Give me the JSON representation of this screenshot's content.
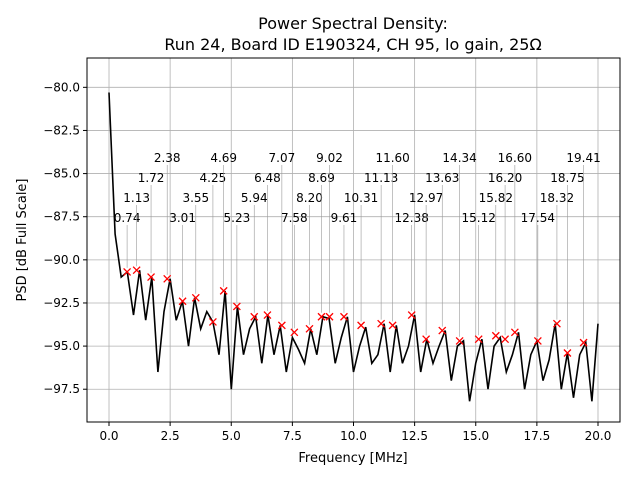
{
  "chart_data": {
    "type": "line",
    "title": "Power Spectral Density:",
    "subtitle": "Run 24, Board ID E190324, CH 95, lo gain, 25Ω",
    "xlabel": "Frequency [MHz]",
    "ylabel": "PSD [dB Full Scale]",
    "xlim": [
      -0.9,
      20.9
    ],
    "ylim": [
      -99.4,
      -78.3
    ],
    "grid": true,
    "xticks": [
      0,
      2.5,
      5,
      7.5,
      10,
      12.5,
      15,
      17.5,
      20
    ],
    "xtick_labels": [
      "0.0",
      "2.5",
      "5.0",
      "7.5",
      "10.0",
      "12.5",
      "15.0",
      "17.5",
      "20.0"
    ],
    "yticks": [
      -80,
      -82.5,
      -85,
      -87.5,
      -90,
      -92.5,
      -95,
      -97.5
    ],
    "ytick_labels": [
      "−80.0",
      "−82.5",
      "−85.0",
      "−87.5",
      "−90.0",
      "−92.5",
      "−95.0",
      "−97.5"
    ],
    "series": [
      {
        "name": "PSD",
        "color": "#000000",
        "x": [
          0,
          0.25,
          0.5,
          0.75,
          1,
          1.25,
          1.5,
          1.75,
          2,
          2.25,
          2.5,
          2.75,
          3,
          3.25,
          3.5,
          3.75,
          4,
          4.25,
          4.5,
          4.75,
          5,
          5.25,
          5.5,
          5.75,
          6,
          6.25,
          6.5,
          6.75,
          7,
          7.25,
          7.5,
          7.75,
          8,
          8.25,
          8.5,
          8.75,
          9,
          9.25,
          9.5,
          9.75,
          10,
          10.25,
          10.5,
          10.75,
          11,
          11.25,
          11.5,
          11.75,
          12,
          12.25,
          12.5,
          12.75,
          13,
          13.25,
          13.5,
          13.75,
          14,
          14.25,
          14.5,
          14.75,
          15,
          15.25,
          15.5,
          15.75,
          16,
          16.25,
          16.5,
          16.75,
          17,
          17.25,
          17.5,
          17.75,
          18,
          18.25,
          18.5,
          18.75,
          19,
          19.25,
          19.5,
          19.75,
          20
        ],
        "y": [
          -80.3,
          -88.5,
          -91.0,
          -90.7,
          -93.2,
          -90.6,
          -93.5,
          -91.0,
          -96.5,
          -93.0,
          -91.1,
          -93.5,
          -92.4,
          -95.0,
          -92.2,
          -94.0,
          -93.0,
          -93.6,
          -95.5,
          -91.8,
          -97.5,
          -92.7,
          -95.5,
          -94.0,
          -93.3,
          -96.0,
          -93.2,
          -95.5,
          -93.8,
          -96.5,
          -94.5,
          -95.2,
          -96.0,
          -94.0,
          -95.5,
          -93.3,
          -93.4,
          -96.0,
          -94.5,
          -93.3,
          -96.5,
          -95.0,
          -93.9,
          -96.0,
          -95.5,
          -93.7,
          -96.5,
          -93.8,
          -96.0,
          -95.0,
          -93.2,
          -96.5,
          -94.6,
          -96.0,
          -95.0,
          -94.1,
          -97.0,
          -95.0,
          -94.7,
          -98.2,
          -96.0,
          -94.6,
          -97.5,
          -95.0,
          -94.5,
          -96.5,
          -95.5,
          -94.2,
          -97.5,
          -95.5,
          -94.7,
          -97.0,
          -95.8,
          -93.7,
          -97.5,
          -95.4,
          -98.0,
          -95.5,
          -94.8,
          -98.2,
          -93.7
        ]
      }
    ],
    "peaks": {
      "marker_color": "#ff0000",
      "labels": [
        "0.74",
        "1.13",
        "1.72",
        "2.38",
        "3.01",
        "3.55",
        "4.25",
        "4.69",
        "5.23",
        "5.94",
        "6.48",
        "7.07",
        "7.58",
        "8.20",
        "8.69",
        "9.02",
        "9.61",
        "10.31",
        "11.13",
        "11.60",
        "12.38",
        "12.97",
        "13.63",
        "14.34",
        "15.12",
        "15.82",
        "16.20",
        "16.60",
        "17.54",
        "18.32",
        "18.75",
        "19.41"
      ],
      "x": [
        0.74,
        1.13,
        1.72,
        2.38,
        3.01,
        3.55,
        4.25,
        4.69,
        5.23,
        5.94,
        6.48,
        7.07,
        7.58,
        8.2,
        8.69,
        9.02,
        9.61,
        10.31,
        11.13,
        11.6,
        12.38,
        12.97,
        13.63,
        14.34,
        15.12,
        15.82,
        16.2,
        16.6,
        17.54,
        18.32,
        18.75,
        19.41
      ],
      "y": [
        -90.7,
        -90.6,
        -91.0,
        -91.1,
        -92.4,
        -92.2,
        -93.6,
        -91.8,
        -92.7,
        -93.3,
        -93.2,
        -93.8,
        -94.2,
        -94.0,
        -93.3,
        -93.3,
        -93.3,
        -93.8,
        -93.7,
        -93.8,
        -93.2,
        -94.6,
        -94.1,
        -94.7,
        -94.6,
        -94.4,
        -94.6,
        -94.2,
        -94.7,
        -93.7,
        -95.4,
        -94.8
      ]
    }
  }
}
